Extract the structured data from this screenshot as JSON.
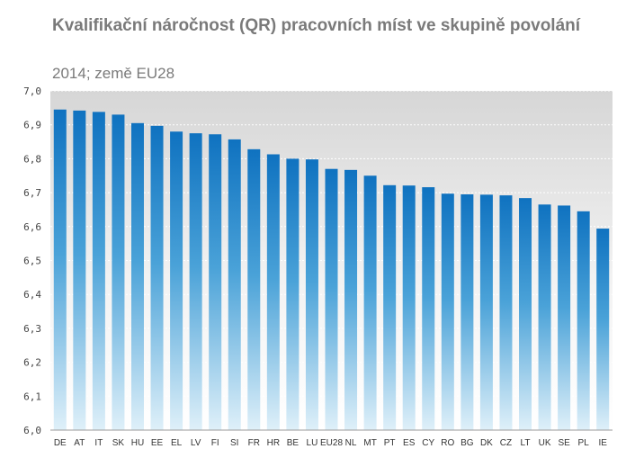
{
  "chart_data": {
    "type": "bar",
    "title": "Kvalifikační náročnost (QR)  pracovních míst ve skupině povolání",
    "subtitle": "2014; země EU28",
    "xlabel": "",
    "ylabel": "",
    "ylim": [
      6.0,
      7.0
    ],
    "yticks": [
      "6,0",
      "6,1",
      "6,2",
      "6,3",
      "6,4",
      "6,5",
      "6,6",
      "6,7",
      "6,8",
      "6,9",
      "7,0"
    ],
    "grid": true,
    "categories": [
      "DE",
      "AT",
      "IT",
      "SK",
      "HU",
      "EE",
      "EL",
      "LV",
      "FI",
      "SI",
      "FR",
      "HR",
      "BE",
      "LU",
      "EU28",
      "NL",
      "MT",
      "PT",
      "ES",
      "CY",
      "RO",
      "BG",
      "DK",
      "CZ",
      "LT",
      "UK",
      "SE",
      "PL",
      "IE"
    ],
    "values": [
      6.945,
      6.942,
      6.938,
      6.93,
      6.905,
      6.897,
      6.88,
      6.875,
      6.872,
      6.857,
      6.828,
      6.813,
      6.8,
      6.798,
      6.77,
      6.767,
      6.75,
      6.722,
      6.721,
      6.716,
      6.697,
      6.695,
      6.694,
      6.692,
      6.684,
      6.665,
      6.662,
      6.645,
      6.594
    ],
    "colors": {
      "bar_top": "#0f72c0",
      "bar_bottom": "#dff0f9",
      "plot_bg_top": "#d6d6d6",
      "plot_bg_bottom": "#ffffff"
    }
  }
}
